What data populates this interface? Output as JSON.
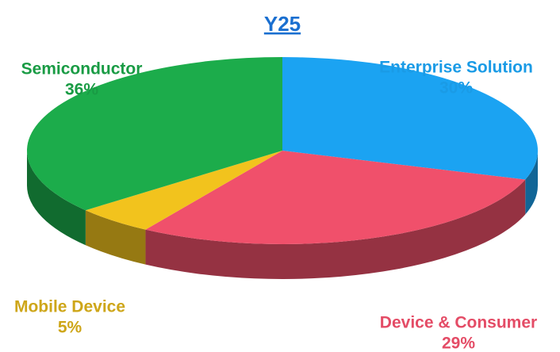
{
  "chart_data": {
    "type": "pie",
    "title": "Y25",
    "categories": [
      "Enterprise Solution",
      "Device & Consumer",
      "Mobile Device",
      "Semiconductor"
    ],
    "values": [
      30,
      29,
      5,
      36
    ],
    "value_labels": [
      "30%",
      "29%",
      "5%",
      "36%"
    ],
    "colors": [
      "#1ba3f2",
      "#f0506b",
      "#f2c31d",
      "#1cac4b"
    ]
  }
}
